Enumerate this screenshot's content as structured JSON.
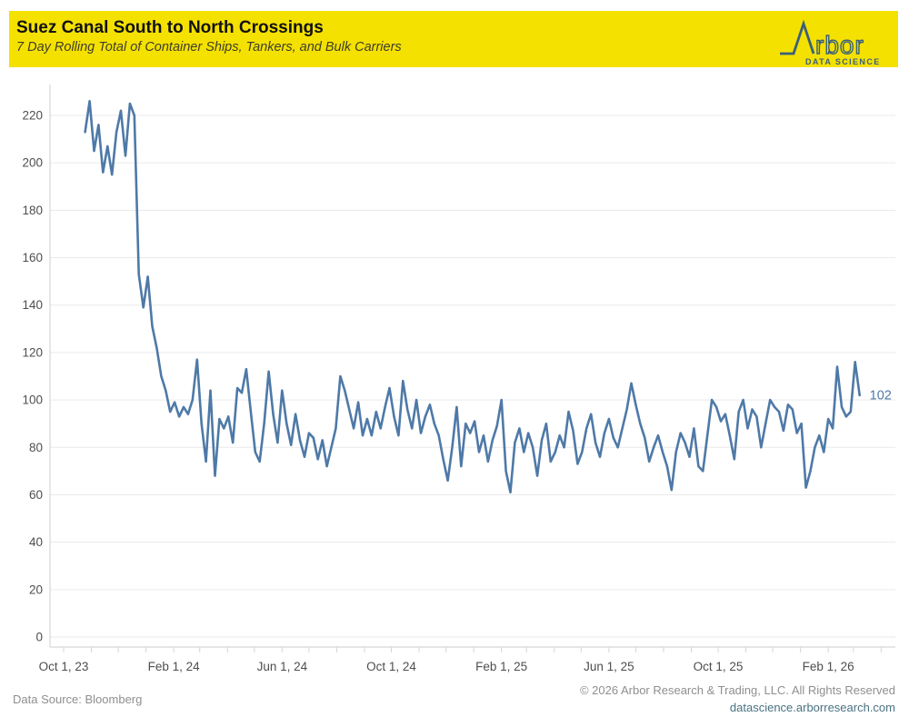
{
  "header": {
    "title": "Suez Canal South to North Crossings",
    "subtitle": "7 Day Rolling Total of Container Ships, Tankers, and Bulk Carriers",
    "band_color": "#F5E100",
    "logo": {
      "brand": "rbor",
      "tagline": "DATA SCIENCE",
      "color": "#3A607A"
    }
  },
  "chart_data": {
    "type": "line",
    "title": "Suez Canal South to North Crossings",
    "series_name": "7 Day Rolling Total of Container Ships, Tankers, and Bulk Carriers",
    "line_color": "#4E79A7",
    "grid": "horizontal",
    "legend": "none",
    "ylim": [
      0,
      233
    ],
    "y_ticks": [
      0,
      20,
      40,
      60,
      80,
      100,
      120,
      140,
      160,
      180,
      200,
      220
    ],
    "x_axis_start": "2023-09-16",
    "x_axis_end": "2026-04-22",
    "x_tick_every": "1 month",
    "x_labeled_ticks": [
      {
        "date": "2023-10-01",
        "label": "Oct 1, 23"
      },
      {
        "date": "2024-02-01",
        "label": "Feb 1, 24"
      },
      {
        "date": "2024-06-01",
        "label": "Jun 1, 24"
      },
      {
        "date": "2024-10-01",
        "label": "Oct 1, 24"
      },
      {
        "date": "2025-02-01",
        "label": "Feb 1, 25"
      },
      {
        "date": "2025-06-01",
        "label": "Jun 1, 25"
      },
      {
        "date": "2025-10-01",
        "label": "Oct 1, 25"
      },
      {
        "date": "2026-02-01",
        "label": "Feb 1, 26"
      }
    ],
    "start_date": "2023-10-25",
    "step_days": 5,
    "values": [
      213,
      226,
      205,
      216,
      196,
      207,
      195,
      213,
      222,
      203,
      225,
      220,
      153,
      139,
      152,
      131,
      122,
      110,
      104,
      95,
      99,
      93,
      97,
      94,
      100,
      117,
      90,
      74,
      104,
      68,
      92,
      88,
      93,
      82,
      105,
      103,
      113,
      95,
      78,
      74,
      90,
      112,
      94,
      82,
      104,
      90,
      81,
      94,
      83,
      76,
      86,
      84,
      75,
      83,
      72,
      80,
      88,
      110,
      104,
      96,
      88,
      99,
      85,
      92,
      85,
      95,
      88,
      97,
      105,
      93,
      85,
      108,
      96,
      88,
      100,
      86,
      93,
      98,
      90,
      85,
      75,
      66,
      80,
      97,
      72,
      90,
      86,
      91,
      78,
      85,
      74,
      83,
      89,
      100,
      70,
      61,
      82,
      88,
      78,
      86,
      80,
      68,
      83,
      90,
      74,
      78,
      85,
      80,
      95,
      87,
      73,
      78,
      88,
      94,
      82,
      76,
      86,
      92,
      84,
      80,
      88,
      96,
      107,
      98,
      90,
      84,
      74,
      80,
      85,
      78,
      72,
      62,
      78,
      86,
      82,
      76,
      88,
      72,
      70,
      85,
      100,
      97,
      91,
      94,
      85,
      75,
      95,
      100,
      88,
      96,
      93,
      80,
      90,
      100,
      97,
      95,
      87,
      98,
      96,
      86,
      90,
      63,
      70,
      80,
      85,
      78,
      92,
      88,
      114,
      97,
      93,
      95,
      116,
      102
    ],
    "end_label": "102",
    "last_value": 102
  },
  "footer": {
    "source": "Data Source: Bloomberg",
    "copyright": "© 2026 Arbor Research & Trading, LLC. All Rights Reserved",
    "website": "datascience.arborresearch.com"
  }
}
